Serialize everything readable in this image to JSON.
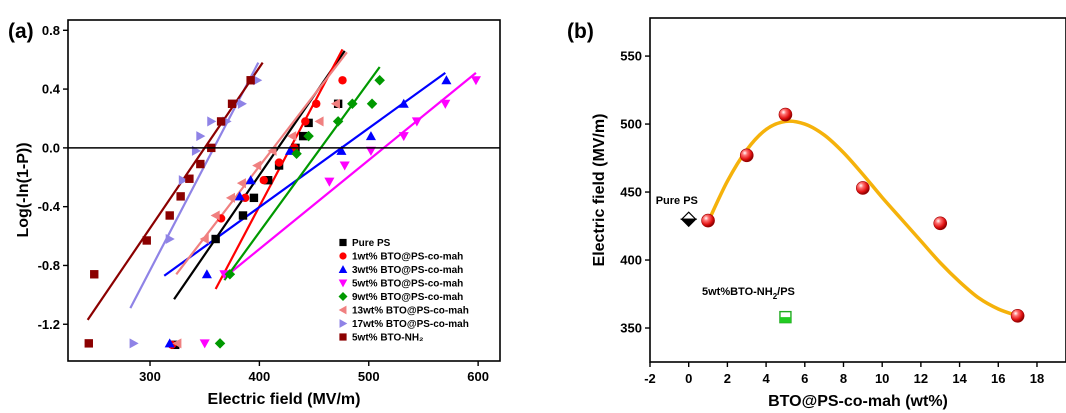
{
  "chart_data": [
    {
      "type": "scatter",
      "panel_label": "(a)",
      "xlabel": "Electric field (MV/m)",
      "ylabel": "Log(-ln(1-P))",
      "xlim": [
        225,
        620
      ],
      "ylim": [
        -1.45,
        0.87
      ],
      "xticks": [
        300,
        400,
        500,
        600
      ],
      "yticks": [
        -1.2,
        -0.8,
        -0.4,
        0.0,
        0.4,
        0.8
      ],
      "ytick_labels": [
        "-1.2",
        "-0.8",
        "-0.4",
        "0.0",
        "0.4",
        "0.8"
      ],
      "zero_line": 0.0,
      "legend_position": "bottom-right",
      "series": [
        {
          "name": "Pure PS",
          "color": "#000000",
          "marker": "square",
          "x": [
            323,
            360,
            385,
            395,
            408,
            418,
            433,
            440,
            445,
            472
          ],
          "y": [
            -1.34,
            -0.62,
            -0.46,
            -0.34,
            -0.22,
            -0.12,
            0.0,
            0.08,
            0.17,
            0.3
          ],
          "fit": [
            [
              322,
              -1.03
            ],
            [
              478,
              0.66
            ]
          ]
        },
        {
          "name": "1wt% BTO@PS-co-mah",
          "color": "#ff0000",
          "marker": "circle",
          "x": [
            320,
            365,
            387,
            404,
            418,
            432,
            442,
            452,
            476
          ],
          "y": [
            -1.34,
            -0.48,
            -0.34,
            -0.22,
            -0.1,
            0.0,
            0.18,
            0.3,
            0.46
          ],
          "fit": [
            [
              360,
              -0.96
            ],
            [
              476,
              0.67
            ]
          ]
        },
        {
          "name": "3wt% BTO@PS-co-mah",
          "color": "#0000ff",
          "marker": "triangle-up",
          "x": [
            318,
            352,
            382,
            392,
            428,
            475,
            502,
            532,
            571
          ],
          "y": [
            -1.33,
            -0.86,
            -0.33,
            -0.22,
            -0.02,
            -0.02,
            0.08,
            0.3,
            0.46
          ],
          "fit": [
            [
              313,
              -0.87
            ],
            [
              570,
              0.51
            ]
          ]
        },
        {
          "name": "5wt% BTO@PS-co-mah",
          "color": "#ff00ff",
          "marker": "triangle-down",
          "x": [
            350,
            368,
            464,
            478,
            502,
            532,
            544,
            570,
            598
          ],
          "y": [
            -1.33,
            -0.86,
            -0.23,
            -0.12,
            -0.02,
            0.08,
            0.18,
            0.3,
            0.46
          ],
          "fit": [
            [
              370,
              -0.87
            ],
            [
              598,
              0.51
            ]
          ]
        },
        {
          "name": "9wt% BTO@PS-co-mah",
          "color": "#009900",
          "marker": "diamond",
          "x": [
            364,
            373,
            434,
            445,
            472,
            485,
            503,
            510
          ],
          "y": [
            -1.33,
            -0.86,
            -0.04,
            0.08,
            0.18,
            0.3,
            0.3,
            0.46
          ],
          "fit": [
            [
              368,
              -0.9
            ],
            [
              510,
              0.55
            ]
          ]
        },
        {
          "name": "13wt% BTO@PS-co-mah",
          "color": "#f08080",
          "marker": "triangle-left",
          "x": [
            325,
            350,
            360,
            374,
            384,
            398,
            412,
            430,
            455,
            470
          ],
          "y": [
            -1.33,
            -0.62,
            -0.46,
            -0.34,
            -0.24,
            -0.12,
            -0.02,
            0.08,
            0.18,
            0.3
          ],
          "fit": [
            [
              324,
              -0.86
            ],
            [
              480,
              0.65
            ]
          ]
        },
        {
          "name": "17wt% BTO@PS-co-mah",
          "color": "#8f83e6",
          "marker": "triangle-right",
          "x": [
            285,
            318,
            330,
            342,
            346,
            356,
            370,
            384,
            398
          ],
          "y": [
            -1.33,
            -0.62,
            -0.22,
            -0.02,
            0.08,
            0.18,
            0.18,
            0.3,
            0.46
          ],
          "fit": [
            [
              282,
              -1.09
            ],
            [
              399,
              0.58
            ]
          ]
        },
        {
          "name": "5wt% BTO-NH₂",
          "color": "#8b0000",
          "marker": "square",
          "x": [
            244,
            249,
            297,
            318,
            328,
            336,
            346,
            356,
            365,
            375,
            392
          ],
          "y": [
            -1.33,
            -0.86,
            -0.63,
            -0.46,
            -0.33,
            -0.21,
            -0.11,
            0.0,
            0.18,
            0.3,
            0.46
          ],
          "fit": [
            [
              243,
              -1.17
            ],
            [
              403,
              0.58
            ]
          ]
        }
      ]
    },
    {
      "type": "scatter",
      "panel_label": "(b)",
      "xlabel": "BTO@PS-co-mah (wt%)",
      "ylabel": "Electric field (MV/m)",
      "xlim": [
        -2,
        19.5
      ],
      "ylim": [
        325,
        578
      ],
      "xticks": [
        -2,
        0,
        2,
        4,
        6,
        8,
        10,
        12,
        14,
        16,
        18
      ],
      "yticks": [
        350,
        400,
        450,
        500,
        550
      ],
      "series": [
        {
          "name": "BTO@PS-co-mah",
          "color": "#ee1111",
          "marker": "sphere",
          "x": [
            1,
            3,
            5,
            9,
            13,
            17
          ],
          "y": [
            429,
            477,
            507,
            453,
            427,
            359
          ],
          "fit_color": "#f5b20b",
          "fit_curve": [
            [
              1,
              428
            ],
            [
              2,
              458
            ],
            [
              3,
              481
            ],
            [
              4,
              496
            ],
            [
              5,
              502
            ],
            [
              6,
              500
            ],
            [
              7,
              492
            ],
            [
              8,
              479
            ],
            [
              9,
              463
            ],
            [
              10,
              446
            ],
            [
              11,
              430
            ],
            [
              12,
              414
            ],
            [
              13,
              398
            ],
            [
              14,
              384
            ],
            [
              15,
              372
            ],
            [
              16,
              364
            ],
            [
              17,
              359
            ]
          ]
        }
      ],
      "annotations": [
        {
          "text": "Pure PS",
          "x": 0,
          "y": 430,
          "marker": "half-diamond"
        },
        {
          "text": "5wt%BTO-NH",
          "sub": "2",
          "tail": "/PS",
          "x": 5,
          "y": 358,
          "marker": "half-square"
        }
      ]
    }
  ]
}
